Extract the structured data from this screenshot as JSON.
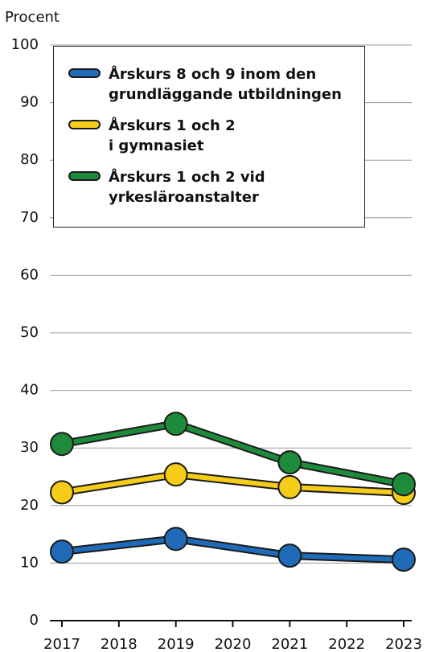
{
  "chart_data": {
    "type": "line",
    "y_label": "Procent",
    "x": [
      2017,
      2019,
      2021,
      2023
    ],
    "xlim": [
      2017,
      2023
    ],
    "xticks": [
      2017,
      2018,
      2019,
      2020,
      2021,
      2022,
      2023
    ],
    "ylim": [
      0,
      100
    ],
    "yticks": [
      0,
      10,
      20,
      30,
      40,
      50,
      60,
      70,
      80,
      90,
      100
    ],
    "grid": true,
    "legend": "top",
    "series": [
      {
        "name": "Årskurs 8 och 9 inom den\ngrundläggande utbildningen",
        "color": "#1f6bb8",
        "values": [
          12.0,
          14.2,
          11.3,
          10.6
        ]
      },
      {
        "name": "Årskurs 1 och 2\ni gymnasiet",
        "color": "#f5cc17",
        "values": [
          22.3,
          25.4,
          23.2,
          22.2
        ]
      },
      {
        "name": "Årskurs 1 och 2 vid\nyrkesläroanstalter",
        "color": "#1e8a3c",
        "values": [
          30.7,
          34.2,
          27.5,
          23.7
        ]
      }
    ]
  }
}
